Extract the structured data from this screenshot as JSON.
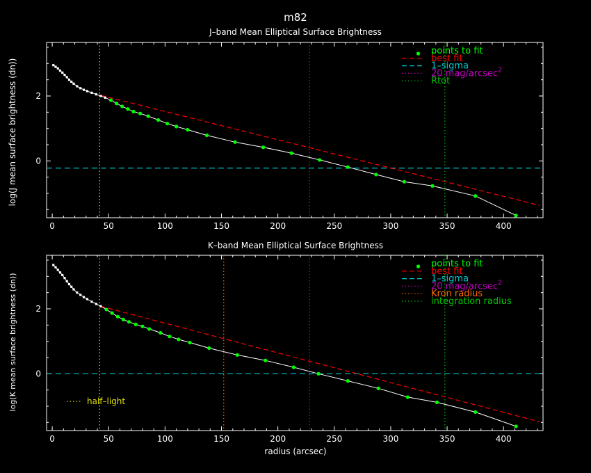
{
  "figure_title": "m82",
  "xlabel": "radius (arcsec)",
  "colors": {
    "background": "#000000",
    "axes": "#ffffff",
    "points": "#00ff00",
    "profile": "#ffffff",
    "best_fit": "#ff0000",
    "sigma": "#00c8d0",
    "mag20": "#c000c0",
    "half_light": "#e0e000",
    "rtot": "#00c000",
    "kron": "#ff6a00",
    "integration": "#00c000"
  },
  "chart_data": [
    {
      "type": "line",
      "title": "J–band Mean Elliptical Surface Brightness",
      "xlabel": "",
      "ylabel": "log(J mean surface brightness (dn))",
      "xlim": [
        -5,
        435
      ],
      "ylim": [
        -1.75,
        3.65
      ],
      "xticks": [
        0,
        50,
        100,
        150,
        200,
        250,
        300,
        350,
        400
      ],
      "yticks": [
        0,
        2
      ],
      "legend_position": "top-right",
      "legend": [
        {
          "label": "points to fit",
          "style": "point",
          "color": "#00ff00"
        },
        {
          "label": "best fit",
          "style": "dash",
          "color": "#ff0000"
        },
        {
          "label": "1–sigma",
          "style": "dash",
          "color": "#00c8d0"
        },
        {
          "label": "20 mag/arcsec",
          "sup": "2",
          "style": "dot",
          "color": "#c000c0"
        },
        {
          "label": "Rtot",
          "style": "dot",
          "color": "#00c000"
        }
      ],
      "profile": {
        "x": [
          1,
          3,
          5,
          7,
          9,
          11,
          13,
          15,
          17,
          19,
          22,
          25,
          28,
          31,
          35,
          39,
          43,
          47,
          52,
          57,
          62,
          67,
          72,
          78,
          85,
          94,
          102,
          110,
          120,
          137,
          162,
          187,
          212,
          237,
          262,
          287,
          312,
          337,
          375,
          411
        ],
        "y": [
          2.95,
          2.9,
          2.85,
          2.78,
          2.72,
          2.65,
          2.58,
          2.5,
          2.44,
          2.38,
          2.3,
          2.24,
          2.19,
          2.15,
          2.1,
          2.05,
          2.0,
          1.95,
          1.87,
          1.77,
          1.68,
          1.6,
          1.52,
          1.46,
          1.38,
          1.26,
          1.15,
          1.06,
          0.96,
          0.79,
          0.58,
          0.42,
          0.24,
          0.03,
          -0.19,
          -0.42,
          -0.64,
          -0.77,
          -1.08,
          -1.68
        ]
      },
      "fit_points": {
        "x": [
          52,
          57,
          62,
          67,
          72,
          78,
          85,
          94,
          102,
          110,
          120,
          137,
          162,
          187,
          212,
          237,
          262,
          287,
          312,
          337,
          375,
          411
        ],
        "y": [
          1.87,
          1.77,
          1.68,
          1.6,
          1.52,
          1.46,
          1.38,
          1.26,
          1.15,
          1.06,
          0.96,
          0.79,
          0.58,
          0.42,
          0.24,
          0.03,
          -0.19,
          -0.42,
          -0.64,
          -0.77,
          -1.08,
          -1.68
        ]
      },
      "best_fit": {
        "x": [
          43,
          432
        ],
        "y": [
          2.02,
          -1.37
        ]
      },
      "one_sigma_y": -0.22,
      "vlines": {
        "half_light": 42,
        "mag20": 228,
        "rtot": 348
      }
    },
    {
      "type": "line",
      "title": "K–band Mean Elliptical Surface Brightness",
      "xlabel": "radius (arcsec)",
      "ylabel": "log(K mean surface brightness (dn))",
      "xlim": [
        -5,
        435
      ],
      "ylim": [
        -1.75,
        3.65
      ],
      "xticks": [
        0,
        50,
        100,
        150,
        200,
        250,
        300,
        350,
        400
      ],
      "yticks": [
        0,
        2
      ],
      "legend_position": "top-right",
      "legend": [
        {
          "label": "points to fit",
          "style": "point",
          "color": "#00ff00"
        },
        {
          "label": "best fit",
          "style": "dash",
          "color": "#ff0000"
        },
        {
          "label": "1–sigma",
          "style": "dash",
          "color": "#00c8d0"
        },
        {
          "label": "20 mag/arcsec",
          "sup": "2",
          "style": "dot",
          "color": "#c000c0"
        },
        {
          "label": "Kron radius",
          "style": "dot",
          "color": "#ff6a00"
        },
        {
          "label": "integration radius",
          "style": "dot",
          "color": "#00c000"
        }
      ],
      "half_light_label": "half–light",
      "profile": {
        "x": [
          1,
          3,
          5,
          7,
          9,
          11,
          13,
          15,
          17,
          19,
          22,
          25,
          28,
          31,
          35,
          39,
          43,
          48,
          53,
          58,
          63,
          68,
          74,
          80,
          86,
          96,
          104,
          112,
          122,
          139,
          164,
          189,
          214,
          236,
          262,
          289,
          315,
          341,
          375,
          411
        ],
        "y": [
          3.35,
          3.28,
          3.2,
          3.12,
          3.04,
          2.95,
          2.85,
          2.76,
          2.68,
          2.6,
          2.5,
          2.43,
          2.36,
          2.3,
          2.22,
          2.15,
          2.08,
          1.98,
          1.87,
          1.76,
          1.67,
          1.6,
          1.52,
          1.46,
          1.38,
          1.26,
          1.15,
          1.06,
          0.96,
          0.79,
          0.58,
          0.41,
          0.2,
          0.0,
          -0.22,
          -0.45,
          -0.72,
          -0.88,
          -1.18,
          -1.62
        ]
      },
      "fit_points": {
        "x": [
          48,
          53,
          58,
          63,
          68,
          74,
          80,
          86,
          96,
          104,
          112,
          122,
          139,
          164,
          189,
          214,
          236,
          262,
          289,
          315,
          341,
          375,
          411
        ],
        "y": [
          1.98,
          1.87,
          1.76,
          1.67,
          1.6,
          1.52,
          1.46,
          1.38,
          1.26,
          1.15,
          1.06,
          0.96,
          0.79,
          0.58,
          0.41,
          0.2,
          0.0,
          -0.22,
          -0.45,
          -0.72,
          -0.88,
          -1.18,
          -1.62
        ]
      },
      "best_fit": {
        "x": [
          43,
          432
        ],
        "y": [
          2.08,
          -1.48
        ]
      },
      "one_sigma_y": 0.0,
      "vlines": {
        "half_light": 42,
        "kron": 152,
        "mag20": 228,
        "integration": 348
      }
    }
  ]
}
